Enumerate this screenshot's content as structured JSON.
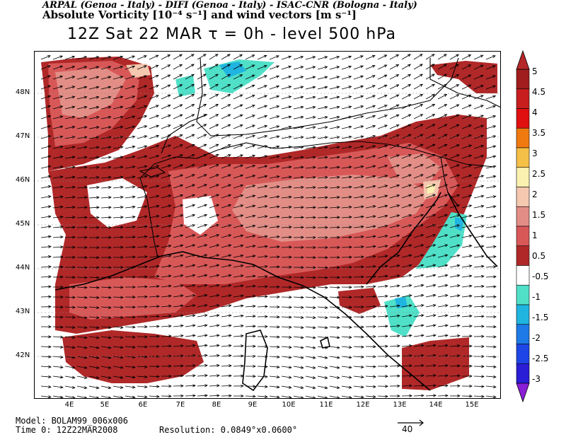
{
  "header": {
    "line1": "ARPAL (Genoa - Italy)  -  DIFI (Genoa - Italy)  -  ISAC-CNR (Bologna - Italy)",
    "line2": "Absolute Vorticity [10⁻⁴ s⁻¹] and wind vectors [m s⁻¹]",
    "line3": "12Z Sat 22 MAR  τ = 0h  -  level 500 hPa"
  },
  "axes": {
    "lat_labels": [
      "48N",
      "47N",
      "46N",
      "45N",
      "44N",
      "43N",
      "42N"
    ],
    "lon_labels": [
      "4E",
      "5E",
      "6E",
      "7E",
      "8E",
      "9E",
      "10E",
      "11E",
      "12E",
      "13E",
      "14E",
      "15E"
    ]
  },
  "colorbar": {
    "labels": [
      "5",
      "4.5",
      "4",
      "3.5",
      "3",
      "2.5",
      "2",
      "1.5",
      "1",
      "0.5",
      "-0.5",
      "-1",
      "-1.5",
      "-2",
      "-2.5",
      "-3"
    ],
    "colors": [
      "#a01e1e",
      "#c81e1e",
      "#e01010",
      "#f07a10",
      "#f5c048",
      "#faf0b0",
      "#f5c8b0",
      "#e28e86",
      "#d85858",
      "#b02828",
      "#ffffff",
      "#50e0c8",
      "#20b4e0",
      "#1e7ae6",
      "#1e46e6",
      "#2a1ed6"
    ],
    "top_triangle": "#b42828",
    "bottom_triangle": "#8a1ed6"
  },
  "footer": {
    "model": "Model: BOLAM99_006x006",
    "time": "Time 0: 12Z22MAR2008",
    "resolution": "Resolution: 0.0849°x0.0600°",
    "ref_value": "40"
  }
}
